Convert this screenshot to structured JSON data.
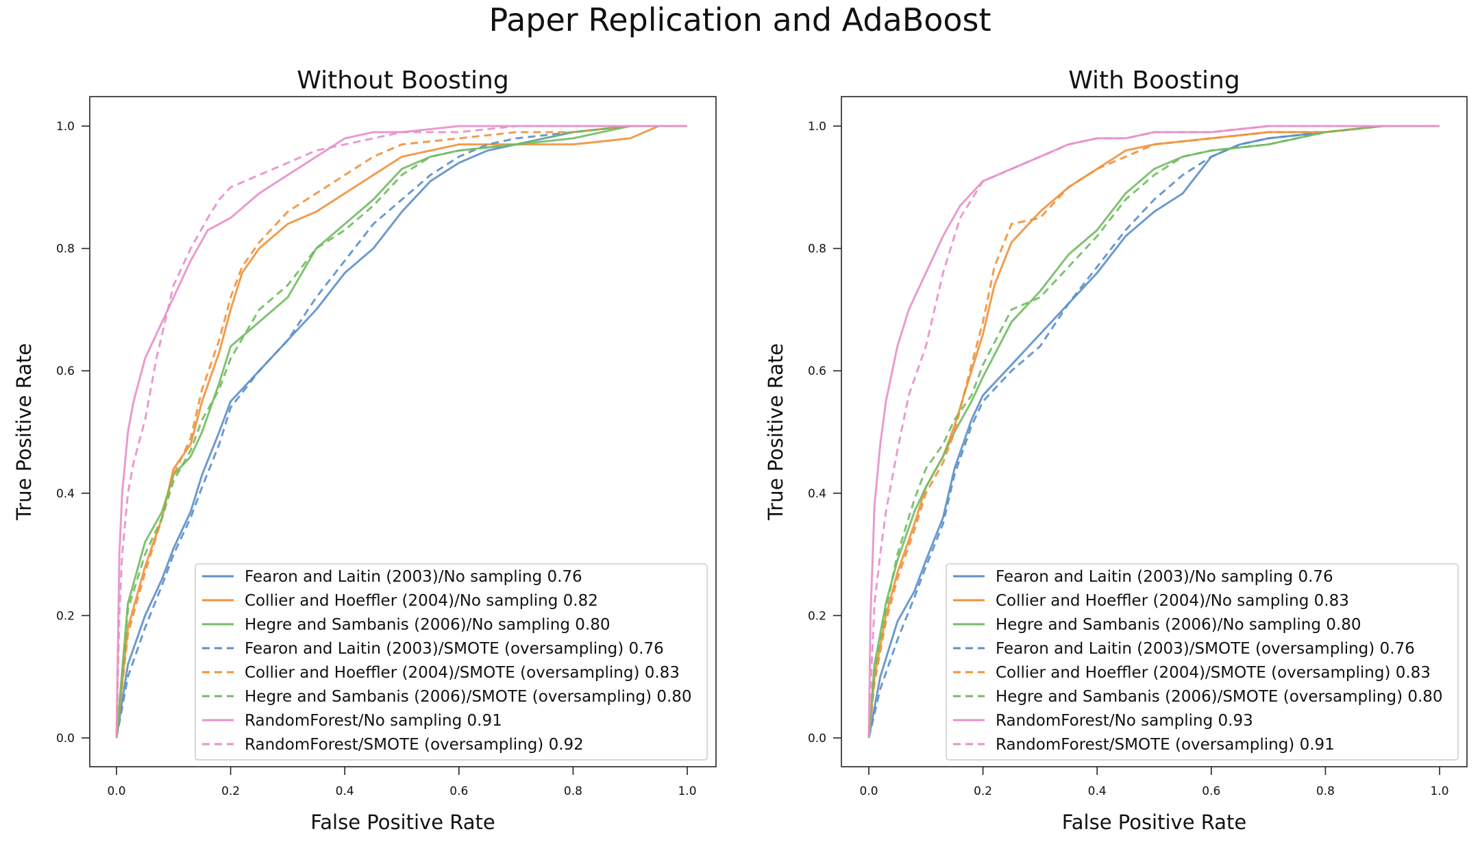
{
  "figure": {
    "title": "Paper Replication and AdaBoost"
  },
  "series_styles": [
    {
      "color": "#5b8fc9",
      "dash": "solid"
    },
    {
      "color": "#f0913a",
      "dash": "solid"
    },
    {
      "color": "#71bb62",
      "dash": "solid"
    },
    {
      "color": "#5b8fc9",
      "dash": "dashed"
    },
    {
      "color": "#f0913a",
      "dash": "dashed"
    },
    {
      "color": "#71bb62",
      "dash": "dashed"
    },
    {
      "color": "#e88fca",
      "dash": "solid"
    },
    {
      "color": "#e88fca",
      "dash": "dashed"
    }
  ],
  "chart_data": [
    {
      "type": "line",
      "title": "Without Boosting",
      "xlabel": "False Positive Rate",
      "ylabel": "True Positive Rate",
      "xlim": [
        0.0,
        1.0
      ],
      "ylim": [
        0.0,
        1.0
      ],
      "xticks": [
        "0.0",
        "0.2",
        "0.4",
        "0.6",
        "0.8",
        "1.0"
      ],
      "yticks": [
        "0.0",
        "0.2",
        "0.4",
        "0.6",
        "0.8",
        "1.0"
      ],
      "legend_position": "bottom-right",
      "series": [
        {
          "name": "Fearon and Laitin (2003)/No sampling 0.76",
          "x": [
            0,
            0.02,
            0.05,
            0.08,
            0.1,
            0.13,
            0.15,
            0.18,
            0.2,
            0.25,
            0.3,
            0.35,
            0.4,
            0.45,
            0.5,
            0.55,
            0.6,
            0.65,
            0.7,
            0.8,
            0.9,
            1.0
          ],
          "y": [
            0,
            0.12,
            0.2,
            0.26,
            0.31,
            0.37,
            0.43,
            0.5,
            0.55,
            0.6,
            0.65,
            0.7,
            0.76,
            0.8,
            0.86,
            0.91,
            0.94,
            0.96,
            0.97,
            0.99,
            1.0,
            1.0
          ]
        },
        {
          "name": "Collier and Hoeffler (2004)/No sampling 0.82",
          "x": [
            0,
            0.02,
            0.05,
            0.08,
            0.1,
            0.13,
            0.15,
            0.18,
            0.2,
            0.22,
            0.25,
            0.3,
            0.35,
            0.4,
            0.45,
            0.5,
            0.6,
            0.7,
            0.8,
            0.9,
            0.95,
            1.0
          ],
          "y": [
            0,
            0.18,
            0.28,
            0.36,
            0.44,
            0.48,
            0.55,
            0.63,
            0.7,
            0.76,
            0.8,
            0.84,
            0.86,
            0.89,
            0.92,
            0.95,
            0.97,
            0.97,
            0.97,
            0.98,
            1.0,
            1.0
          ]
        },
        {
          "name": "Hegre and Sambanis (2006)/No sampling 0.80",
          "x": [
            0,
            0.02,
            0.05,
            0.08,
            0.1,
            0.13,
            0.15,
            0.18,
            0.2,
            0.25,
            0.3,
            0.35,
            0.4,
            0.45,
            0.5,
            0.55,
            0.6,
            0.7,
            0.8,
            0.9,
            1.0
          ],
          "y": [
            0,
            0.22,
            0.32,
            0.37,
            0.43,
            0.46,
            0.5,
            0.58,
            0.64,
            0.68,
            0.72,
            0.8,
            0.84,
            0.88,
            0.93,
            0.95,
            0.96,
            0.97,
            0.98,
            1.0,
            1.0
          ]
        },
        {
          "name": "Fearon and Laitin (2003)/SMOTE (oversampling) 0.76",
          "x": [
            0,
            0.02,
            0.05,
            0.08,
            0.1,
            0.13,
            0.15,
            0.18,
            0.2,
            0.25,
            0.3,
            0.35,
            0.4,
            0.45,
            0.5,
            0.55,
            0.6,
            0.65,
            0.7,
            0.8,
            0.9,
            1.0
          ],
          "y": [
            0,
            0.1,
            0.18,
            0.25,
            0.3,
            0.36,
            0.41,
            0.48,
            0.54,
            0.6,
            0.65,
            0.72,
            0.78,
            0.84,
            0.88,
            0.92,
            0.95,
            0.97,
            0.98,
            0.99,
            1.0,
            1.0
          ]
        },
        {
          "name": "Collier and Hoeffler (2004)/SMOTE (oversampling) 0.83",
          "x": [
            0,
            0.02,
            0.05,
            0.08,
            0.1,
            0.13,
            0.15,
            0.18,
            0.2,
            0.22,
            0.25,
            0.3,
            0.35,
            0.4,
            0.45,
            0.5,
            0.6,
            0.7,
            0.8,
            0.9,
            1.0
          ],
          "y": [
            0,
            0.17,
            0.27,
            0.36,
            0.43,
            0.49,
            0.57,
            0.65,
            0.72,
            0.77,
            0.81,
            0.86,
            0.89,
            0.92,
            0.95,
            0.97,
            0.98,
            0.99,
            0.99,
            1.0,
            1.0
          ]
        },
        {
          "name": "Hegre and Sambanis (2006)/SMOTE (oversampling) 0.80",
          "x": [
            0,
            0.02,
            0.05,
            0.08,
            0.1,
            0.13,
            0.15,
            0.18,
            0.2,
            0.25,
            0.3,
            0.35,
            0.4,
            0.45,
            0.5,
            0.55,
            0.6,
            0.7,
            0.8,
            0.9,
            1.0
          ],
          "y": [
            0,
            0.21,
            0.3,
            0.36,
            0.42,
            0.47,
            0.52,
            0.57,
            0.62,
            0.7,
            0.74,
            0.8,
            0.83,
            0.87,
            0.92,
            0.95,
            0.96,
            0.97,
            0.99,
            1.0,
            1.0
          ]
        },
        {
          "name": "RandomForest/No sampling 0.91",
          "x": [
            0,
            0.005,
            0.01,
            0.02,
            0.03,
            0.05,
            0.07,
            0.1,
            0.13,
            0.16,
            0.2,
            0.25,
            0.3,
            0.35,
            0.4,
            0.45,
            0.5,
            0.6,
            0.7,
            0.8,
            0.9,
            1.0
          ],
          "y": [
            0,
            0.3,
            0.4,
            0.5,
            0.55,
            0.62,
            0.66,
            0.72,
            0.78,
            0.83,
            0.85,
            0.89,
            0.92,
            0.95,
            0.98,
            0.99,
            0.99,
            1.0,
            1.0,
            1.0,
            1.0,
            1.0
          ]
        },
        {
          "name": "RandomForest/SMOTE (oversampling) 0.92",
          "x": [
            0,
            0.005,
            0.01,
            0.02,
            0.03,
            0.05,
            0.07,
            0.1,
            0.13,
            0.16,
            0.18,
            0.2,
            0.25,
            0.3,
            0.35,
            0.4,
            0.45,
            0.5,
            0.6,
            0.7,
            0.8,
            0.9,
            1.0
          ],
          "y": [
            0,
            0.2,
            0.3,
            0.4,
            0.45,
            0.52,
            0.62,
            0.74,
            0.8,
            0.85,
            0.88,
            0.9,
            0.92,
            0.94,
            0.96,
            0.97,
            0.98,
            0.99,
            0.99,
            1.0,
            1.0,
            1.0,
            1.0
          ]
        }
      ]
    },
    {
      "type": "line",
      "title": "With Boosting",
      "xlabel": "False Positive Rate",
      "ylabel": "True Positive Rate",
      "xlim": [
        0.0,
        1.0
      ],
      "ylim": [
        0.0,
        1.0
      ],
      "xticks": [
        "0.0",
        "0.2",
        "0.4",
        "0.6",
        "0.8",
        "1.0"
      ],
      "yticks": [
        "0.0",
        "0.2",
        "0.4",
        "0.6",
        "0.8",
        "1.0"
      ],
      "legend_position": "bottom-right",
      "series": [
        {
          "name": "Fearon and Laitin (2003)/No sampling 0.76",
          "x": [
            0,
            0.02,
            0.05,
            0.08,
            0.1,
            0.13,
            0.15,
            0.18,
            0.2,
            0.25,
            0.3,
            0.35,
            0.4,
            0.45,
            0.5,
            0.55,
            0.6,
            0.65,
            0.7,
            0.8,
            0.9,
            1.0
          ],
          "y": [
            0,
            0.1,
            0.19,
            0.24,
            0.29,
            0.36,
            0.44,
            0.52,
            0.56,
            0.61,
            0.66,
            0.71,
            0.76,
            0.82,
            0.86,
            0.89,
            0.95,
            0.97,
            0.98,
            0.99,
            1.0,
            1.0
          ]
        },
        {
          "name": "Collier and Hoeffler (2004)/No sampling 0.83",
          "x": [
            0,
            0.01,
            0.03,
            0.05,
            0.08,
            0.1,
            0.13,
            0.15,
            0.18,
            0.2,
            0.22,
            0.25,
            0.3,
            0.35,
            0.4,
            0.45,
            0.5,
            0.6,
            0.7,
            0.8,
            0.9,
            1.0
          ],
          "y": [
            0,
            0.1,
            0.2,
            0.27,
            0.35,
            0.41,
            0.46,
            0.51,
            0.6,
            0.66,
            0.74,
            0.81,
            0.86,
            0.9,
            0.93,
            0.96,
            0.97,
            0.98,
            0.99,
            0.99,
            1.0,
            1.0
          ]
        },
        {
          "name": "Hegre and Sambanis (2006)/No sampling 0.80",
          "x": [
            0,
            0.01,
            0.03,
            0.05,
            0.08,
            0.1,
            0.13,
            0.15,
            0.18,
            0.2,
            0.25,
            0.3,
            0.35,
            0.4,
            0.45,
            0.5,
            0.55,
            0.6,
            0.7,
            0.8,
            0.9,
            1.0
          ],
          "y": [
            0,
            0.12,
            0.22,
            0.29,
            0.37,
            0.41,
            0.46,
            0.5,
            0.55,
            0.59,
            0.68,
            0.73,
            0.79,
            0.83,
            0.89,
            0.93,
            0.95,
            0.96,
            0.97,
            0.99,
            1.0,
            1.0
          ]
        },
        {
          "name": "Fearon and Laitin (2003)/SMOTE (oversampling) 0.76",
          "x": [
            0,
            0.02,
            0.05,
            0.08,
            0.1,
            0.13,
            0.15,
            0.18,
            0.2,
            0.25,
            0.3,
            0.35,
            0.4,
            0.45,
            0.5,
            0.55,
            0.6,
            0.65,
            0.7,
            0.8,
            0.9,
            1.0
          ],
          "y": [
            0,
            0.08,
            0.16,
            0.23,
            0.28,
            0.35,
            0.43,
            0.51,
            0.55,
            0.6,
            0.64,
            0.71,
            0.77,
            0.83,
            0.88,
            0.92,
            0.95,
            0.97,
            0.98,
            0.99,
            1.0,
            1.0
          ]
        },
        {
          "name": "Collier and Hoeffler (2004)/SMOTE (oversampling) 0.83",
          "x": [
            0,
            0.01,
            0.03,
            0.05,
            0.08,
            0.1,
            0.13,
            0.15,
            0.18,
            0.2,
            0.22,
            0.25,
            0.3,
            0.35,
            0.4,
            0.45,
            0.5,
            0.6,
            0.7,
            0.8,
            0.9,
            1.0
          ],
          "y": [
            0,
            0.09,
            0.19,
            0.26,
            0.34,
            0.4,
            0.45,
            0.5,
            0.61,
            0.68,
            0.77,
            0.84,
            0.85,
            0.9,
            0.93,
            0.95,
            0.97,
            0.98,
            0.99,
            0.99,
            1.0,
            1.0
          ]
        },
        {
          "name": "Hegre and Sambanis (2006)/SMOTE (oversampling) 0.80",
          "x": [
            0,
            0.01,
            0.03,
            0.05,
            0.08,
            0.1,
            0.13,
            0.15,
            0.18,
            0.2,
            0.25,
            0.3,
            0.35,
            0.4,
            0.45,
            0.5,
            0.55,
            0.6,
            0.7,
            0.8,
            0.9,
            1.0
          ],
          "y": [
            0,
            0.11,
            0.21,
            0.3,
            0.39,
            0.44,
            0.48,
            0.52,
            0.56,
            0.61,
            0.7,
            0.72,
            0.77,
            0.82,
            0.88,
            0.92,
            0.95,
            0.96,
            0.97,
            0.99,
            1.0,
            1.0
          ]
        },
        {
          "name": "RandomForest/No sampling 0.93",
          "x": [
            0,
            0.003,
            0.007,
            0.01,
            0.02,
            0.03,
            0.05,
            0.07,
            0.1,
            0.13,
            0.16,
            0.2,
            0.25,
            0.3,
            0.35,
            0.4,
            0.45,
            0.5,
            0.6,
            0.7,
            0.8,
            0.9,
            1.0
          ],
          "y": [
            0,
            0.2,
            0.3,
            0.38,
            0.48,
            0.55,
            0.64,
            0.7,
            0.76,
            0.82,
            0.87,
            0.91,
            0.93,
            0.95,
            0.97,
            0.98,
            0.98,
            0.99,
            0.99,
            1.0,
            1.0,
            1.0,
            1.0
          ]
        },
        {
          "name": "RandomForest/SMOTE (oversampling) 0.91",
          "x": [
            0,
            0.005,
            0.01,
            0.02,
            0.03,
            0.05,
            0.07,
            0.1,
            0.13,
            0.16,
            0.2,
            0.25,
            0.3,
            0.35,
            0.4,
            0.45,
            0.5,
            0.6,
            0.7,
            0.8,
            0.9,
            1.0
          ],
          "y": [
            0,
            0.12,
            0.22,
            0.3,
            0.37,
            0.47,
            0.56,
            0.64,
            0.76,
            0.85,
            0.91,
            0.93,
            0.95,
            0.97,
            0.98,
            0.98,
            0.99,
            0.99,
            1.0,
            1.0,
            1.0,
            1.0
          ]
        }
      ]
    }
  ]
}
